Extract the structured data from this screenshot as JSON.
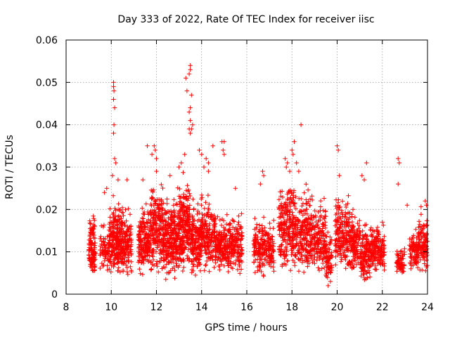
{
  "chart_data": {
    "type": "scatter",
    "title": "Day 333 of 2022, Rate Of TEC Index for receiver iisc",
    "xlabel": "GPS time / hours",
    "ylabel": "ROTI / TECUs",
    "xlim": [
      8,
      24
    ],
    "ylim": [
      0,
      0.06
    ],
    "xticks": [
      "8",
      "10",
      "12",
      "14",
      "16",
      "18",
      "20",
      "22",
      "24"
    ],
    "yticks": [
      "0",
      "0.01",
      "0.02",
      "0.03",
      "0.04",
      "0.05",
      "0.06"
    ],
    "grid": true,
    "marker": "plus",
    "color": "#ff0000",
    "clusters": [
      {
        "x": [
          9.0,
          9.3
        ],
        "y": [
          0.004,
          0.02
        ],
        "n": 120
      },
      {
        "x": [
          9.5,
          9.9
        ],
        "y": [
          0.005,
          0.018
        ],
        "n": 70
      },
      {
        "x": [
          9.9,
          10.5
        ],
        "y": [
          0.003,
          0.026
        ],
        "n": 260
      },
      {
        "x": [
          10.5,
          10.9
        ],
        "y": [
          0.004,
          0.022
        ],
        "n": 120
      },
      {
        "x": [
          11.2,
          11.7
        ],
        "y": [
          0.004,
          0.024
        ],
        "n": 180
      },
      {
        "x": [
          11.7,
          12.3
        ],
        "y": [
          0.004,
          0.03
        ],
        "n": 220
      },
      {
        "x": [
          12.3,
          12.9
        ],
        "y": [
          0.003,
          0.026
        ],
        "n": 240
      },
      {
        "x": [
          12.9,
          13.5
        ],
        "y": [
          0.004,
          0.031
        ],
        "n": 260
      },
      {
        "x": [
          13.5,
          14.0
        ],
        "y": [
          0.004,
          0.025
        ],
        "n": 180
      },
      {
        "x": [
          14.0,
          14.6
        ],
        "y": [
          0.005,
          0.027
        ],
        "n": 170
      },
      {
        "x": [
          14.6,
          15.1
        ],
        "y": [
          0.005,
          0.02
        ],
        "n": 150
      },
      {
        "x": [
          15.1,
          15.8
        ],
        "y": [
          0.004,
          0.021
        ],
        "n": 180
      },
      {
        "x": [
          16.3,
          16.8
        ],
        "y": [
          0.004,
          0.021
        ],
        "n": 130
      },
      {
        "x": [
          16.8,
          17.2
        ],
        "y": [
          0.004,
          0.02
        ],
        "n": 90
      },
      {
        "x": [
          17.4,
          18.1
        ],
        "y": [
          0.004,
          0.03
        ],
        "n": 230
      },
      {
        "x": [
          18.1,
          18.8
        ],
        "y": [
          0.004,
          0.027
        ],
        "n": 200
      },
      {
        "x": [
          18.8,
          19.5
        ],
        "y": [
          0.004,
          0.025
        ],
        "n": 190
      },
      {
        "x": [
          19.5,
          19.8
        ],
        "y": [
          0.002,
          0.016
        ],
        "n": 70
      },
      {
        "x": [
          19.9,
          20.5
        ],
        "y": [
          0.005,
          0.026
        ],
        "n": 170
      },
      {
        "x": [
          20.5,
          21.0
        ],
        "y": [
          0.004,
          0.022
        ],
        "n": 140
      },
      {
        "x": [
          21.0,
          21.5
        ],
        "y": [
          0.003,
          0.019
        ],
        "n": 150
      },
      {
        "x": [
          21.5,
          22.1
        ],
        "y": [
          0.004,
          0.019
        ],
        "n": 150
      },
      {
        "x": [
          22.6,
          23.0
        ],
        "y": [
          0.004,
          0.012
        ],
        "n": 70
      },
      {
        "x": [
          23.2,
          23.6
        ],
        "y": [
          0.005,
          0.017
        ],
        "n": 90
      },
      {
        "x": [
          23.6,
          24.0
        ],
        "y": [
          0.005,
          0.022
        ],
        "n": 110
      }
    ],
    "points": [
      [
        10.1,
        0.05
      ],
      [
        10.1,
        0.049
      ],
      [
        10.12,
        0.048
      ],
      [
        10.1,
        0.046
      ],
      [
        10.15,
        0.044
      ],
      [
        10.12,
        0.04
      ],
      [
        10.1,
        0.038
      ],
      [
        10.15,
        0.032
      ],
      [
        10.2,
        0.031
      ],
      [
        10.05,
        0.028
      ],
      [
        13.3,
        0.051
      ],
      [
        13.5,
        0.054
      ],
      [
        13.5,
        0.053
      ],
      [
        13.45,
        0.052
      ],
      [
        13.35,
        0.048
      ],
      [
        13.55,
        0.047
      ],
      [
        13.5,
        0.044
      ],
      [
        13.45,
        0.043
      ],
      [
        13.5,
        0.041
      ],
      [
        13.45,
        0.039
      ],
      [
        13.5,
        0.038
      ],
      [
        13.55,
        0.039
      ],
      [
        13.6,
        0.04
      ],
      [
        11.6,
        0.035
      ],
      [
        11.9,
        0.035
      ],
      [
        11.95,
        0.034
      ],
      [
        11.8,
        0.033
      ],
      [
        12.0,
        0.032
      ],
      [
        13.0,
        0.03
      ],
      [
        13.1,
        0.031
      ],
      [
        13.25,
        0.033
      ],
      [
        13.9,
        0.034
      ],
      [
        14.0,
        0.033
      ],
      [
        14.2,
        0.032
      ],
      [
        14.3,
        0.031
      ],
      [
        14.5,
        0.035
      ],
      [
        14.9,
        0.036
      ],
      [
        15.0,
        0.036
      ],
      [
        14.95,
        0.034
      ],
      [
        15.0,
        0.033
      ],
      [
        14.1,
        0.03
      ],
      [
        14.3,
        0.029
      ],
      [
        16.7,
        0.029
      ],
      [
        16.75,
        0.028
      ],
      [
        17.7,
        0.032
      ],
      [
        17.8,
        0.031
      ],
      [
        17.75,
        0.03
      ],
      [
        17.9,
        0.029
      ],
      [
        18.0,
        0.034
      ],
      [
        18.1,
        0.036
      ],
      [
        18.05,
        0.033
      ],
      [
        18.4,
        0.04
      ],
      [
        18.2,
        0.031
      ],
      [
        18.3,
        0.029
      ],
      [
        20.0,
        0.035
      ],
      [
        20.05,
        0.034
      ],
      [
        20.1,
        0.028
      ],
      [
        21.3,
        0.031
      ],
      [
        22.7,
        0.032
      ],
      [
        22.75,
        0.031
      ],
      [
        22.7,
        0.026
      ],
      [
        23.1,
        0.021
      ],
      [
        23.9,
        0.022
      ],
      [
        23.95,
        0.021
      ],
      [
        9.7,
        0.024
      ],
      [
        9.8,
        0.025
      ],
      [
        10.3,
        0.027
      ],
      [
        10.7,
        0.027
      ],
      [
        12.0,
        0.029
      ],
      [
        12.6,
        0.028
      ],
      [
        16.6,
        0.026
      ],
      [
        19.6,
        0.002
      ],
      [
        19.7,
        0.003
      ],
      [
        21.1,
        0.028
      ],
      [
        21.2,
        0.027
      ],
      [
        22.0,
        0.017
      ],
      [
        20.7,
        0.02
      ],
      [
        11.4,
        0.027
      ],
      [
        15.5,
        0.025
      ]
    ]
  }
}
